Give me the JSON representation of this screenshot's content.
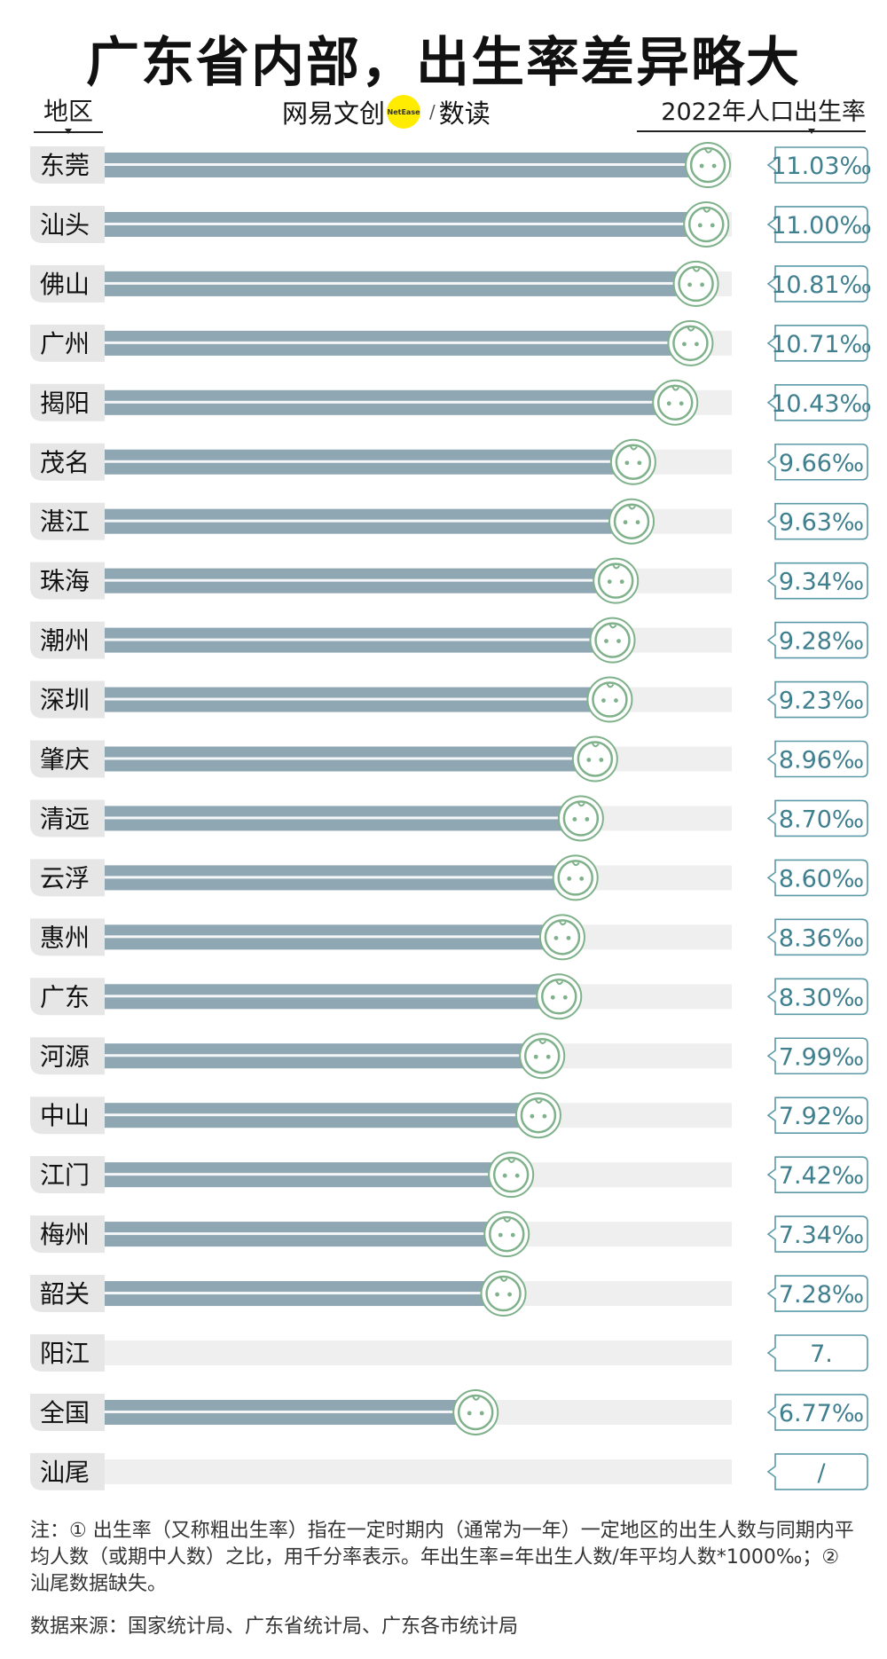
{
  "title": "广东省内部，出生率差异略大",
  "header": {
    "left_label": "地区",
    "right_label": "2022年人口出生率"
  },
  "brand": {
    "name": "网易文创",
    "logo_text": "NetEase",
    "section": "数读"
  },
  "chart_data": {
    "type": "bar",
    "orientation": "horizontal",
    "unit": "‰",
    "categories": [
      "东莞",
      "汕头",
      "佛山",
      "广州",
      "揭阳",
      "茂名",
      "湛江",
      "珠海",
      "潮州",
      "深圳",
      "肇庆",
      "清远",
      "云浮",
      "惠州",
      "广东",
      "河源",
      "中山",
      "江门",
      "梅州",
      "韶关",
      "阳江",
      "全国",
      "汕尾"
    ],
    "values": [
      11.03,
      11.0,
      10.81,
      10.71,
      10.43,
      9.66,
      9.63,
      9.34,
      9.28,
      9.23,
      8.96,
      8.7,
      8.6,
      8.36,
      8.3,
      7.99,
      7.92,
      7.42,
      7.34,
      7.28,
      null,
      6.77,
      null
    ],
    "value_labels": [
      "11.03‰",
      "11.00‰",
      "10.81‰",
      "10.71‰",
      "10.43‰",
      "9.66‰",
      "9.63‰",
      "9.34‰",
      "9.28‰",
      "9.23‰",
      "8.96‰",
      "8.70‰",
      "8.60‰",
      "8.36‰",
      "8.30‰",
      "7.99‰",
      "7.92‰",
      "7.42‰",
      "7.34‰",
      "7.28‰",
      "7.",
      "6.77‰",
      "/"
    ],
    "xlim": [
      0,
      11.5
    ],
    "colors": {
      "bar": "#8ea7b3",
      "bar_stripe": "#ffffff",
      "track": "#efefef",
      "label_bg": "#e6e6e6",
      "face": "#7fb18b",
      "value_box": "#5c9aa8"
    }
  },
  "notes": {
    "note": "注：① 出生率（又称粗出生率）指在一定时期内（通常为一年）一定地区的出生人数与同期内平均人数（或期中人数）之比，用千分率表示。年出生率=年出生人数/年平均人数*1000‰；② 汕尾数据缺失。",
    "source": "数据来源：国家统计局、广东省统计局、广东各市统计局"
  }
}
